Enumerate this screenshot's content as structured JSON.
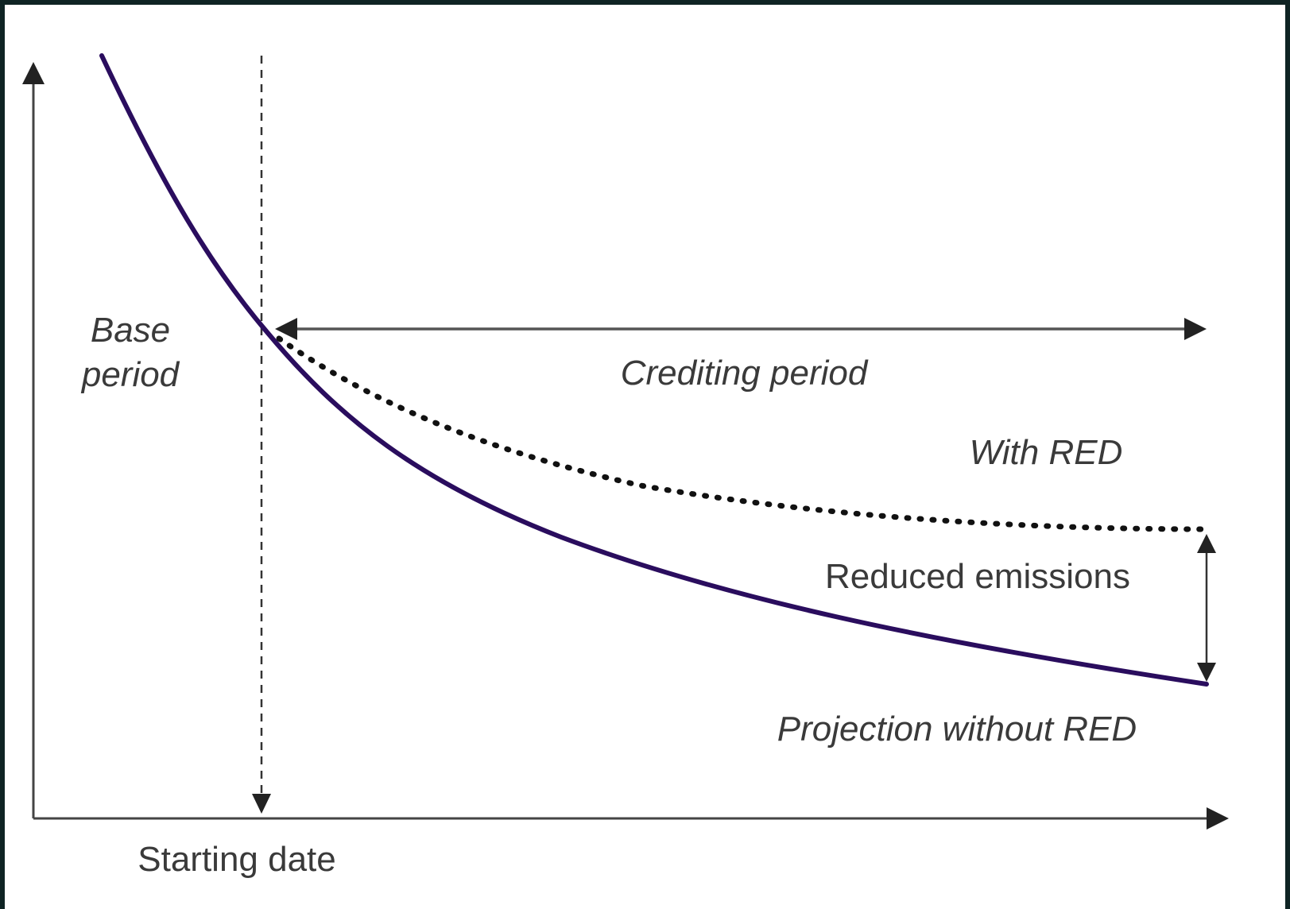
{
  "diagram": {
    "labels": {
      "base_period_line1": "Base",
      "base_period_line2": "period",
      "crediting_period": "Crediting period",
      "with_red": "With RED",
      "reduced_emissions": "Reduced emissions",
      "projection_without_red": "Projection without RED",
      "starting_date": "Starting date"
    },
    "colors": {
      "projection_curve": "#2a0d5e",
      "with_red_curve": "#111111",
      "axes": "#444444",
      "text": "#3a3a3a",
      "frame": "#0f2424"
    },
    "curves": [
      {
        "id": "projection_without_red",
        "style": "solid"
      },
      {
        "id": "with_red",
        "style": "dotted"
      }
    ],
    "markers": [
      {
        "id": "starting_date",
        "style": "dashed-vertical"
      },
      {
        "id": "crediting_period",
        "style": "double-arrow-horizontal"
      },
      {
        "id": "reduced_emissions",
        "style": "double-arrow-vertical"
      }
    ]
  }
}
